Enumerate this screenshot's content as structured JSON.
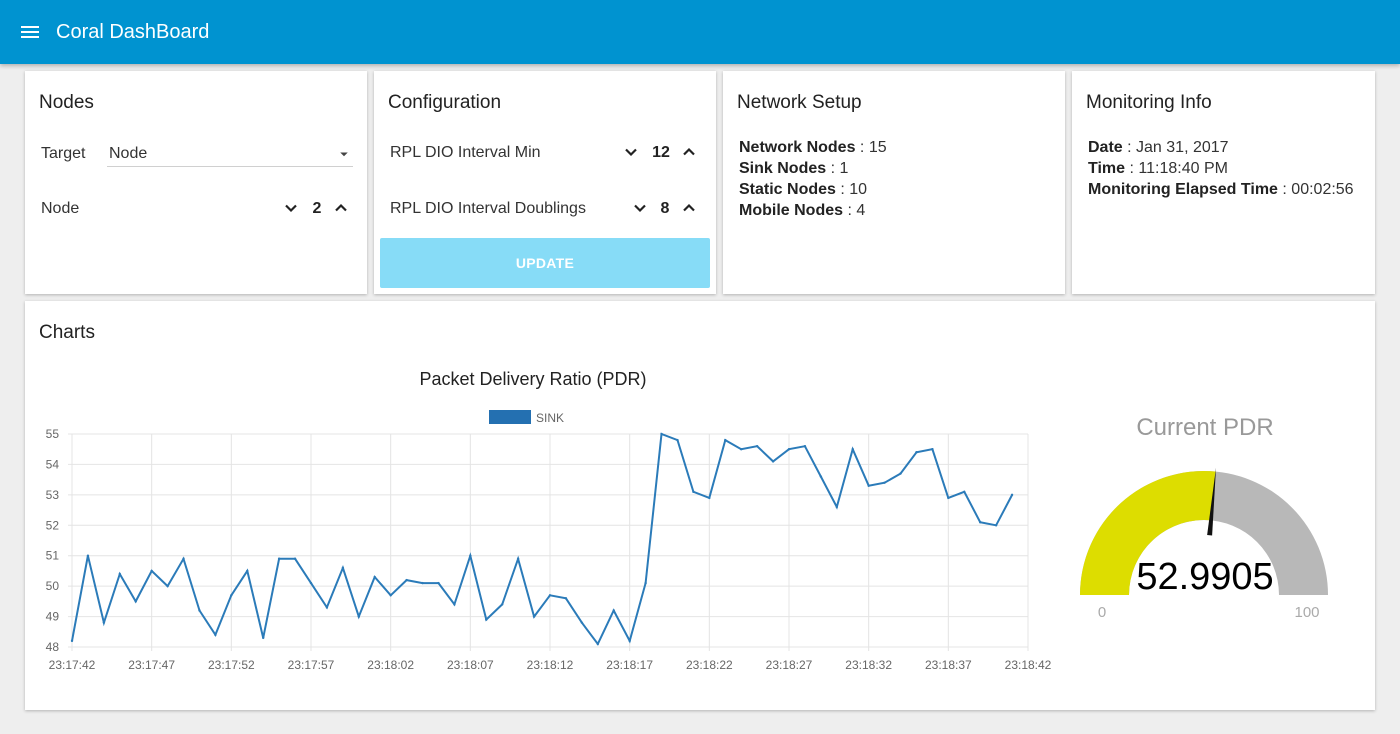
{
  "appbar": {
    "title": "Coral DashBoard"
  },
  "nodes_card": {
    "title": "Nodes",
    "target_label": "Target",
    "target_value": "Node",
    "node_label": "Node",
    "node_value": "2"
  },
  "config_card": {
    "title": "Configuration",
    "dio_min_label": "RPL DIO Interval Min",
    "dio_min_value": "12",
    "dio_doublings_label": "RPL DIO Interval Doublings",
    "dio_doublings_value": "8",
    "update_label": "UPDATE"
  },
  "network_card": {
    "title": "Network Setup",
    "items": [
      {
        "label": "Network Nodes",
        "sep": " : ",
        "value": "15"
      },
      {
        "label": "Sink Nodes",
        "sep": " : ",
        "value": "1"
      },
      {
        "label": "Static Nodes",
        "sep": " : ",
        "value": "10"
      },
      {
        "label": "Mobile Nodes",
        "sep": " : ",
        "value": "4"
      }
    ]
  },
  "monitoring_card": {
    "title": "Monitoring Info",
    "items": [
      {
        "label": "Date",
        "sep": " : ",
        "value": "Jan 31, 2017"
      },
      {
        "label": "Time",
        "sep": " : ",
        "value": "11:18:40 PM"
      },
      {
        "label": "Monitoring Elapsed Time",
        "sep": " : ",
        "value": "00:02:56"
      }
    ]
  },
  "charts_card": {
    "title": "Charts",
    "gauge": {
      "title": "Current PDR",
      "value": "52.9905",
      "min": "0",
      "max": "100",
      "fraction": 0.529905
    }
  },
  "colors": {
    "appbar": "#0093d0",
    "series": "#2b7bb9",
    "legend": "#2470b1",
    "gauge_fill": "#dddd00",
    "gauge_bg": "#b8b8b8",
    "update_button": "#87dcf7"
  },
  "chart_data": {
    "type": "line",
    "title": "Packet Delivery Ratio (PDR)",
    "legend_position": "top",
    "grid": true,
    "xlabel": "",
    "ylabel": "",
    "ylim": [
      48,
      55
    ],
    "yticks": [
      48,
      49,
      50,
      51,
      52,
      53,
      54,
      55
    ],
    "xticks": [
      "23:17:42",
      "23:17:47",
      "23:17:52",
      "23:17:57",
      "23:18:02",
      "23:18:07",
      "23:18:12",
      "23:18:17",
      "23:18:22",
      "23:18:27",
      "23:18:32",
      "23:18:37",
      "23:18:42"
    ],
    "series": [
      {
        "name": "SINK",
        "points": [
          [
            "23:17:42",
            48.2
          ],
          [
            "23:17:43",
            51.0
          ],
          [
            "23:17:44",
            48.8
          ],
          [
            "23:17:45",
            50.4
          ],
          [
            "23:17:46",
            49.5
          ],
          [
            "23:17:47",
            50.5
          ],
          [
            "23:17:48",
            50.0
          ],
          [
            "23:17:49",
            50.9
          ],
          [
            "23:17:50",
            49.2
          ],
          [
            "23:17:51",
            48.4
          ],
          [
            "23:17:52",
            49.7
          ],
          [
            "23:17:53",
            50.5
          ],
          [
            "23:17:54",
            48.3
          ],
          [
            "23:17:55",
            50.9
          ],
          [
            "23:17:56",
            50.9
          ],
          [
            "23:17:57",
            50.1
          ],
          [
            "23:17:58",
            49.3
          ],
          [
            "23:17:59",
            50.6
          ],
          [
            "23:18:00",
            49.0
          ],
          [
            "23:18:01",
            50.3
          ],
          [
            "23:18:02",
            49.7
          ],
          [
            "23:18:03",
            50.2
          ],
          [
            "23:18:04",
            50.1
          ],
          [
            "23:18:05",
            50.1
          ],
          [
            "23:18:06",
            49.4
          ],
          [
            "23:18:07",
            51.0
          ],
          [
            "23:18:08",
            48.9
          ],
          [
            "23:18:09",
            49.4
          ],
          [
            "23:18:10",
            50.9
          ],
          [
            "23:18:11",
            49.0
          ],
          [
            "23:18:12",
            49.7
          ],
          [
            "23:18:13",
            49.6
          ],
          [
            "23:18:14",
            48.8
          ],
          [
            "23:18:15",
            48.1
          ],
          [
            "23:18:16",
            49.2
          ],
          [
            "23:18:17",
            48.2
          ],
          [
            "23:18:18",
            50.1
          ],
          [
            "23:18:19",
            55.0
          ],
          [
            "23:18:20",
            54.8
          ],
          [
            "23:18:21",
            53.1
          ],
          [
            "23:18:22",
            52.9
          ],
          [
            "23:18:23",
            54.8
          ],
          [
            "23:18:24",
            54.5
          ],
          [
            "23:18:25",
            54.6
          ],
          [
            "23:18:26",
            54.1
          ],
          [
            "23:18:27",
            54.5
          ],
          [
            "23:18:28",
            54.6
          ],
          [
            "23:18:29",
            53.6
          ],
          [
            "23:18:30",
            52.6
          ],
          [
            "23:18:31",
            54.5
          ],
          [
            "23:18:32",
            53.3
          ],
          [
            "23:18:33",
            53.4
          ],
          [
            "23:18:34",
            53.7
          ],
          [
            "23:18:35",
            54.4
          ],
          [
            "23:18:36",
            54.5
          ],
          [
            "23:18:37",
            52.9
          ],
          [
            "23:18:38",
            53.1
          ],
          [
            "23:18:39",
            52.1
          ],
          [
            "23:18:40",
            52.0
          ],
          [
            "23:18:41",
            53.0
          ]
        ]
      }
    ]
  }
}
